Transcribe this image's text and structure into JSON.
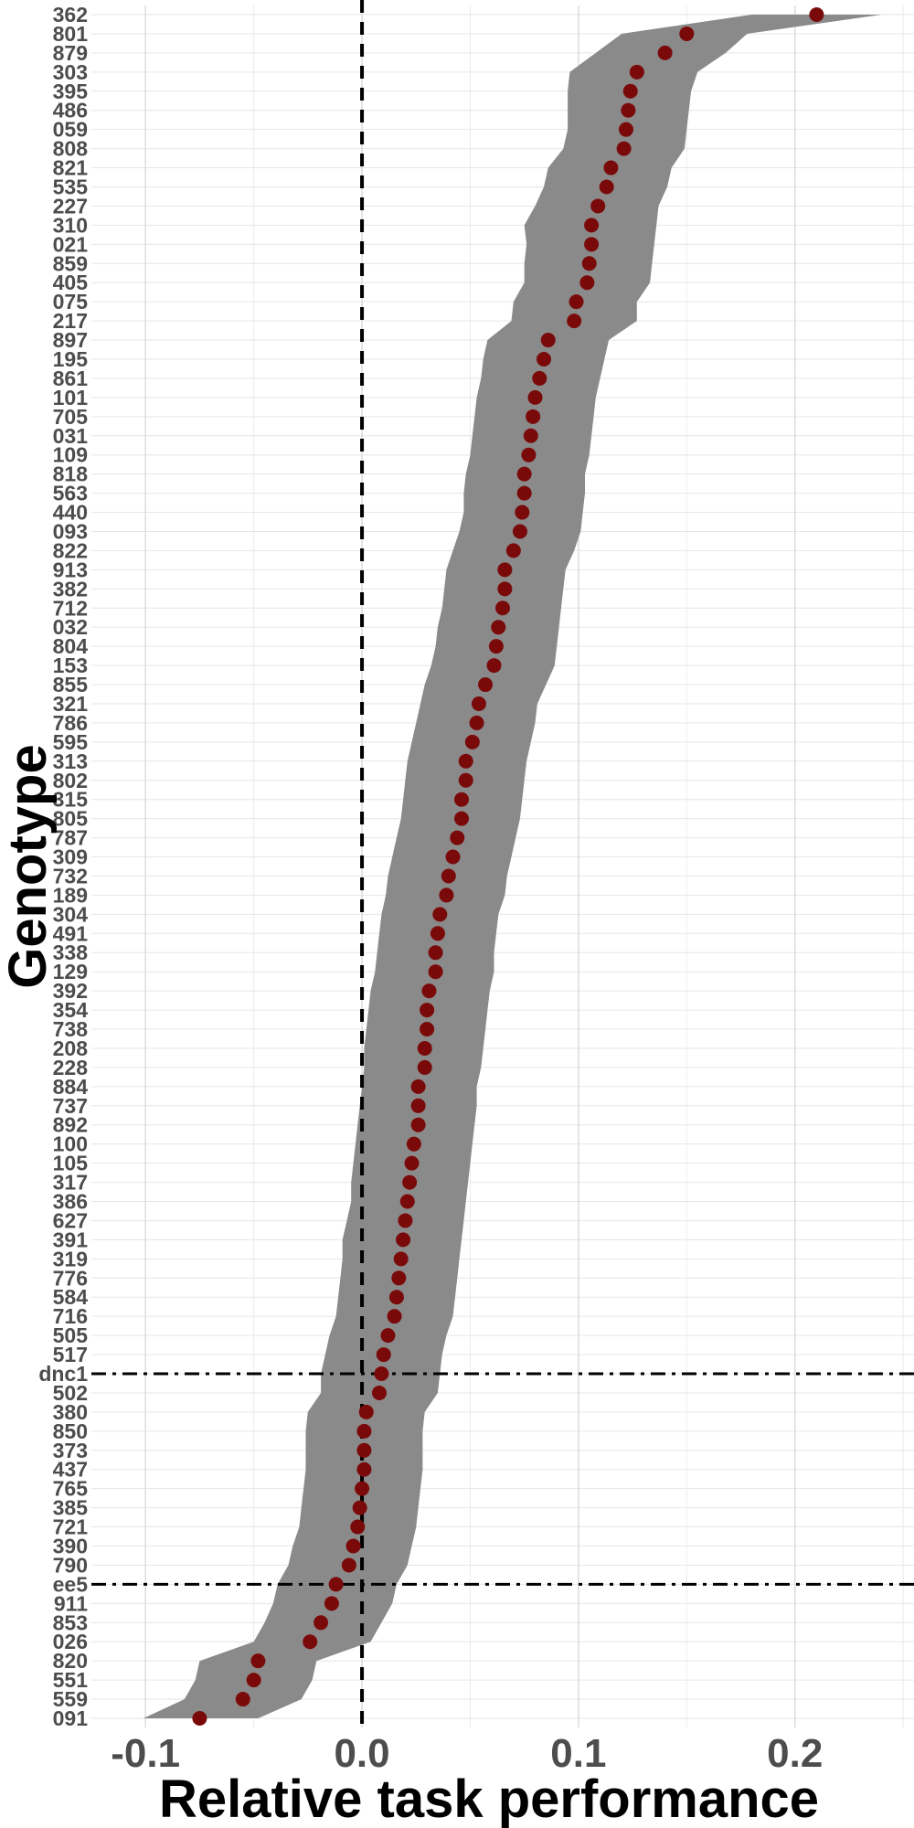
{
  "chart_data": {
    "type": "scatter",
    "title": "",
    "xlabel": "Relative task performance",
    "ylabel": "Genotype",
    "xlim": [
      -0.125,
      0.255
    ],
    "x_ticks": [
      -0.1,
      0.0,
      0.1,
      0.2
    ],
    "x_tick_labels": [
      "-0.1",
      "0.0",
      "0.1",
      "0.2"
    ],
    "grid": true,
    "legend": "none",
    "colors": {
      "point": "#7a0a0a",
      "ribbon": "#8a8a8a",
      "grid": "#e6e6e6",
      "reference": "#000000"
    },
    "reference_lines": [
      {
        "axis": "x",
        "value": 0.0,
        "style": "dashed"
      },
      {
        "axis": "y",
        "category": "dnc1",
        "style": "dashdot"
      },
      {
        "axis": "y",
        "category": "ee5",
        "style": "dashdot"
      }
    ],
    "categories": [
      "362",
      "801",
      "879",
      "303",
      "395",
      "486",
      "059",
      "808",
      "821",
      "535",
      "227",
      "310",
      "021",
      "859",
      "405",
      "075",
      "217",
      "897",
      "195",
      "861",
      "101",
      "705",
      "031",
      "109",
      "818",
      "563",
      "440",
      "093",
      "822",
      "913",
      "382",
      "712",
      "032",
      "804",
      "153",
      "855",
      "321",
      "786",
      "595",
      "313",
      "802",
      "315",
      "805",
      "787",
      "309",
      "732",
      "189",
      "304",
      "491",
      "338",
      "129",
      "392",
      "354",
      "738",
      "208",
      "228",
      "884",
      "737",
      "892",
      "100",
      "105",
      "317",
      "386",
      "627",
      "391",
      "319",
      "776",
      "584",
      "716",
      "505",
      "517",
      "dnc1",
      "502",
      "380",
      "850",
      "373",
      "437",
      "765",
      "385",
      "721",
      "390",
      "790",
      "ee5",
      "911",
      "853",
      "026",
      "820",
      "551",
      "559",
      "091"
    ],
    "values": [
      0.21,
      0.15,
      0.14,
      0.127,
      0.124,
      0.123,
      0.122,
      0.121,
      0.115,
      0.113,
      0.109,
      0.106,
      0.106,
      0.105,
      0.104,
      0.099,
      0.098,
      0.086,
      0.084,
      0.082,
      0.08,
      0.079,
      0.078,
      0.077,
      0.075,
      0.075,
      0.074,
      0.073,
      0.07,
      0.066,
      0.066,
      0.065,
      0.063,
      0.062,
      0.061,
      0.057,
      0.054,
      0.053,
      0.051,
      0.048,
      0.048,
      0.046,
      0.046,
      0.044,
      0.042,
      0.04,
      0.039,
      0.036,
      0.035,
      0.034,
      0.034,
      0.031,
      0.03,
      0.03,
      0.029,
      0.029,
      0.026,
      0.026,
      0.026,
      0.024,
      0.023,
      0.022,
      0.021,
      0.02,
      0.019,
      0.018,
      0.017,
      0.016,
      0.015,
      0.012,
      0.01,
      0.009,
      0.008,
      0.002,
      0.001,
      0.001,
      0.001,
      0.0,
      -0.001,
      -0.002,
      -0.004,
      -0.006,
      -0.012,
      -0.014,
      -0.019,
      -0.024,
      -0.048,
      -0.05,
      -0.055,
      -0.075
    ],
    "lower": [
      0.18,
      0.12,
      0.108,
      0.096,
      0.095,
      0.095,
      0.095,
      0.093,
      0.086,
      0.084,
      0.08,
      0.075,
      0.076,
      0.075,
      0.075,
      0.07,
      0.069,
      0.058,
      0.056,
      0.055,
      0.053,
      0.052,
      0.051,
      0.05,
      0.048,
      0.047,
      0.047,
      0.045,
      0.042,
      0.039,
      0.038,
      0.037,
      0.035,
      0.034,
      0.032,
      0.029,
      0.027,
      0.025,
      0.023,
      0.021,
      0.02,
      0.019,
      0.018,
      0.016,
      0.014,
      0.012,
      0.011,
      0.009,
      0.008,
      0.007,
      0.006,
      0.004,
      0.003,
      0.002,
      0.001,
      0.001,
      0.0,
      -0.001,
      -0.002,
      -0.003,
      -0.004,
      -0.005,
      -0.005,
      -0.007,
      -0.009,
      -0.009,
      -0.01,
      -0.011,
      -0.012,
      -0.015,
      -0.017,
      -0.019,
      -0.019,
      -0.025,
      -0.026,
      -0.026,
      -0.026,
      -0.027,
      -0.028,
      -0.029,
      -0.032,
      -0.034,
      -0.039,
      -0.041,
      -0.045,
      -0.05,
      -0.075,
      -0.077,
      -0.082,
      -0.101
    ],
    "upper": [
      0.24,
      0.178,
      0.168,
      0.155,
      0.152,
      0.151,
      0.15,
      0.149,
      0.143,
      0.141,
      0.137,
      0.136,
      0.135,
      0.134,
      0.133,
      0.127,
      0.127,
      0.114,
      0.112,
      0.11,
      0.108,
      0.107,
      0.106,
      0.105,
      0.103,
      0.103,
      0.102,
      0.101,
      0.098,
      0.094,
      0.093,
      0.092,
      0.091,
      0.09,
      0.089,
      0.085,
      0.081,
      0.08,
      0.078,
      0.076,
      0.075,
      0.074,
      0.073,
      0.071,
      0.069,
      0.067,
      0.066,
      0.063,
      0.062,
      0.061,
      0.061,
      0.059,
      0.058,
      0.057,
      0.056,
      0.055,
      0.053,
      0.053,
      0.052,
      0.051,
      0.05,
      0.049,
      0.048,
      0.047,
      0.046,
      0.045,
      0.044,
      0.043,
      0.042,
      0.039,
      0.037,
      0.036,
      0.035,
      0.029,
      0.028,
      0.028,
      0.028,
      0.027,
      0.026,
      0.025,
      0.023,
      0.021,
      0.016,
      0.014,
      0.009,
      0.004,
      -0.021,
      -0.023,
      -0.028,
      -0.048
    ]
  }
}
